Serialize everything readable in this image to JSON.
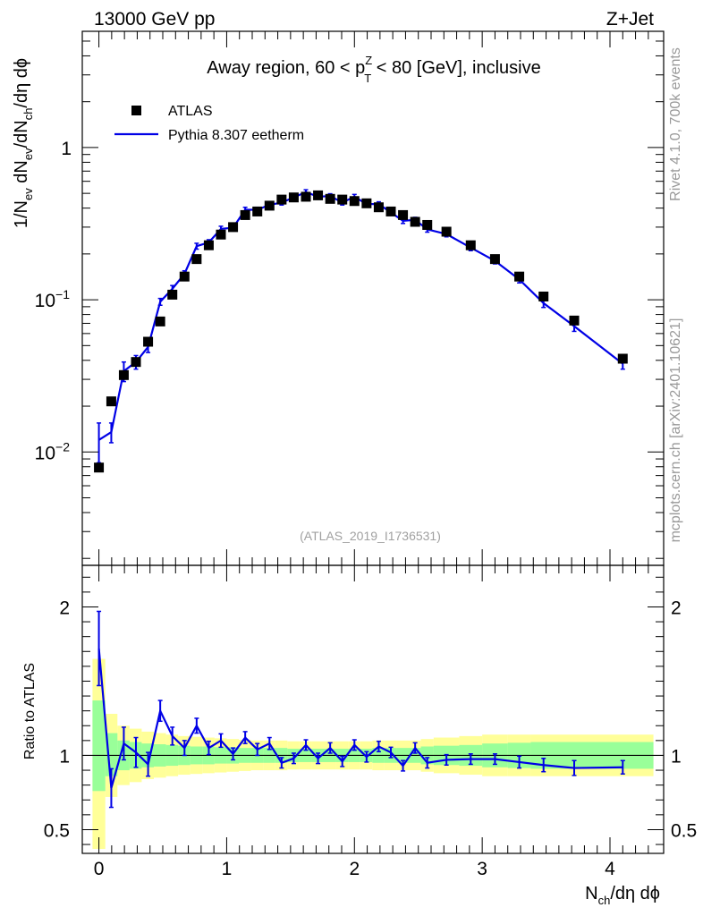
{
  "header": {
    "left": "13000 GeV pp",
    "right": "Z+Jet"
  },
  "side_labels": {
    "rivet": "Rivet 4.1.0,  700k events",
    "mcplots": "mcplots.cern.ch [arXiv:2401.10621]"
  },
  "chart_data": [
    {
      "type": "scatter",
      "panel": "main",
      "title": "Away region, 60 < p_T^Z < 80 [GeV], inclusive",
      "title_parts": {
        "before": "Away region, 60 < p",
        "sup": "Z",
        "sub": "T",
        "after": " < 80 [GeV], inclusive"
      },
      "watermark": "(ATLAS_2019_I1736531)",
      "ylabel": "1/N_ev dN_ev/dN_ch/dη dϕ",
      "ylabel_parts": {
        "a": "1/N",
        "a_sub": "ev",
        "b": " dN",
        "b_sub": "ev",
        "c": "/dN",
        "c_sub": "ch",
        "d": "/dη dϕ"
      },
      "yscale": "log",
      "ylim": [
        0.0018,
        5.8
      ],
      "xlim": [
        -0.13,
        4.42
      ],
      "y_tick_labels": [
        {
          "value": 1,
          "base": "1",
          "exp": ""
        },
        {
          "value": 0.1,
          "base": "10",
          "exp": "−1"
        },
        {
          "value": 0.01,
          "base": "10",
          "exp": "−2"
        }
      ],
      "legend_position": "top-left",
      "legend": [
        {
          "name": "ATLAS",
          "marker": "square",
          "color": "#000000"
        },
        {
          "name": "Pythia 8.307 eetherm",
          "marker": "line",
          "color": "#0000e6"
        }
      ],
      "series": [
        {
          "name": "ATLAS",
          "x": [
            0.0,
            0.097,
            0.195,
            0.29,
            0.385,
            0.48,
            0.575,
            0.67,
            0.765,
            0.86,
            0.955,
            1.05,
            1.145,
            1.24,
            1.335,
            1.43,
            1.525,
            1.62,
            1.715,
            1.81,
            1.905,
            2.0,
            2.095,
            2.19,
            2.285,
            2.38,
            2.475,
            2.57,
            2.72,
            2.91,
            3.1,
            3.29,
            3.48,
            3.72,
            4.1
          ],
          "y": [
            0.0079,
            0.0215,
            0.032,
            0.039,
            0.053,
            0.072,
            0.108,
            0.142,
            0.185,
            0.228,
            0.268,
            0.3,
            0.36,
            0.38,
            0.415,
            0.455,
            0.47,
            0.475,
            0.485,
            0.46,
            0.455,
            0.445,
            0.43,
            0.405,
            0.38,
            0.36,
            0.325,
            0.31,
            0.28,
            0.228,
            0.185,
            0.142,
            0.105,
            0.073,
            0.041
          ]
        },
        {
          "name": "Pythia 8.307 eetherm",
          "x": [
            0.0,
            0.097,
            0.195,
            0.29,
            0.385,
            0.48,
            0.575,
            0.67,
            0.765,
            0.86,
            0.955,
            1.05,
            1.145,
            1.24,
            1.335,
            1.43,
            1.525,
            1.62,
            1.715,
            1.81,
            1.905,
            2.0,
            2.095,
            2.19,
            2.285,
            2.38,
            2.475,
            2.57,
            2.72,
            2.91,
            3.1,
            3.29,
            3.48,
            3.72,
            4.1
          ],
          "y": [
            0.012,
            0.0135,
            0.034,
            0.039,
            0.049,
            0.097,
            0.118,
            0.148,
            0.225,
            0.238,
            0.292,
            0.297,
            0.39,
            0.39,
            0.42,
            0.435,
            0.47,
            0.51,
            0.475,
            0.48,
            0.435,
            0.475,
            0.425,
            0.425,
            0.375,
            0.33,
            0.335,
            0.29,
            0.27,
            0.22,
            0.18,
            0.136,
            0.095,
            0.067,
            0.038
          ],
          "yerr": [
            0.0035,
            0.002,
            0.005,
            0.004,
            0.004,
            0.005,
            0.006,
            0.007,
            0.01,
            0.01,
            0.012,
            0.012,
            0.015,
            0.015,
            0.016,
            0.016,
            0.018,
            0.018,
            0.017,
            0.017,
            0.016,
            0.017,
            0.015,
            0.015,
            0.014,
            0.013,
            0.013,
            0.012,
            0.011,
            0.01,
            0.008,
            0.007,
            0.006,
            0.005,
            0.003
          ]
        }
      ]
    },
    {
      "type": "line",
      "panel": "ratio",
      "ylabel": "Ratio to ATLAS",
      "xlabel": "N_ch/dη dϕ",
      "xlabel_parts": {
        "a": "N",
        "a_sub": "ch",
        "b": "/dη dϕ"
      },
      "ylim": [
        0.34,
        2.28
      ],
      "xlim": [
        -0.13,
        4.42
      ],
      "x_ticks": [
        0,
        1,
        2,
        3,
        4
      ],
      "x_tick_labels": [
        "0",
        "1",
        "2",
        "3",
        "4"
      ],
      "y_ticks": [
        0.5,
        1,
        2
      ],
      "y_tick_labels": [
        "0.5",
        "1",
        "2"
      ],
      "bands": {
        "edges": [
          -0.05,
          0.05,
          0.145,
          0.24,
          0.335,
          0.43,
          0.525,
          0.62,
          0.715,
          0.81,
          0.905,
          1.0,
          1.095,
          1.19,
          1.285,
          1.38,
          1.475,
          1.57,
          1.665,
          1.76,
          1.855,
          1.95,
          2.045,
          2.14,
          2.235,
          2.33,
          2.425,
          2.52,
          2.62,
          2.82,
          3.0,
          3.2,
          3.38,
          3.58,
          3.86,
          4.34
        ],
        "yellow_lo": [
          0.37,
          0.72,
          0.8,
          0.82,
          0.84,
          0.85,
          0.86,
          0.87,
          0.875,
          0.88,
          0.885,
          0.89,
          0.895,
          0.9,
          0.9,
          0.9,
          0.905,
          0.905,
          0.905,
          0.905,
          0.905,
          0.905,
          0.905,
          0.9,
          0.9,
          0.9,
          0.9,
          0.89,
          0.88,
          0.87,
          0.86,
          0.86,
          0.86,
          0.86,
          0.86
        ],
        "yellow_hi": [
          1.65,
          1.28,
          1.2,
          1.18,
          1.16,
          1.15,
          1.14,
          1.13,
          1.125,
          1.12,
          1.115,
          1.11,
          1.105,
          1.1,
          1.1,
          1.1,
          1.095,
          1.095,
          1.095,
          1.095,
          1.095,
          1.095,
          1.095,
          1.1,
          1.1,
          1.1,
          1.1,
          1.11,
          1.12,
          1.13,
          1.14,
          1.14,
          1.14,
          1.14,
          1.14
        ],
        "green_lo": [
          0.76,
          0.86,
          0.9,
          0.91,
          0.92,
          0.925,
          0.93,
          0.935,
          0.94,
          0.94,
          0.945,
          0.945,
          0.95,
          0.95,
          0.95,
          0.95,
          0.955,
          0.955,
          0.955,
          0.955,
          0.955,
          0.955,
          0.955,
          0.95,
          0.95,
          0.95,
          0.95,
          0.94,
          0.935,
          0.93,
          0.92,
          0.915,
          0.91,
          0.91,
          0.91
        ],
        "green_hi": [
          1.37,
          1.15,
          1.1,
          1.09,
          1.08,
          1.075,
          1.07,
          1.065,
          1.06,
          1.06,
          1.055,
          1.055,
          1.05,
          1.05,
          1.05,
          1.05,
          1.045,
          1.045,
          1.045,
          1.045,
          1.045,
          1.045,
          1.045,
          1.05,
          1.05,
          1.05,
          1.05,
          1.06,
          1.065,
          1.07,
          1.08,
          1.085,
          1.09,
          1.09,
          1.09
        ]
      },
      "series": [
        {
          "name": "Pythia 8.307 eetherm / ATLAS",
          "x": [
            0.0,
            0.097,
            0.195,
            0.29,
            0.385,
            0.48,
            0.575,
            0.67,
            0.765,
            0.86,
            0.955,
            1.05,
            1.145,
            1.24,
            1.335,
            1.43,
            1.525,
            1.62,
            1.715,
            1.81,
            1.905,
            2.0,
            2.095,
            2.19,
            2.285,
            2.38,
            2.475,
            2.57,
            2.72,
            2.91,
            3.1,
            3.29,
            3.48,
            3.72,
            4.1
          ],
          "y": [
            1.72,
            0.78,
            1.08,
            1.02,
            0.94,
            1.3,
            1.13,
            1.05,
            1.2,
            1.05,
            1.1,
            1.01,
            1.12,
            1.04,
            1.08,
            0.95,
            0.98,
            1.07,
            0.98,
            1.05,
            0.96,
            1.07,
            0.99,
            1.06,
            1.02,
            0.93,
            1.05,
            0.95,
            0.97,
            0.975,
            0.975,
            0.955,
            0.935,
            0.915,
            0.92
          ],
          "yerr": [
            0.25,
            0.13,
            0.11,
            0.1,
            0.08,
            0.07,
            0.06,
            0.05,
            0.05,
            0.045,
            0.045,
            0.04,
            0.04,
            0.04,
            0.04,
            0.035,
            0.035,
            0.035,
            0.035,
            0.035,
            0.035,
            0.035,
            0.035,
            0.035,
            0.035,
            0.035,
            0.035,
            0.035,
            0.035,
            0.035,
            0.035,
            0.04,
            0.045,
            0.05,
            0.045
          ]
        }
      ],
      "reference_line": 1
    }
  ]
}
